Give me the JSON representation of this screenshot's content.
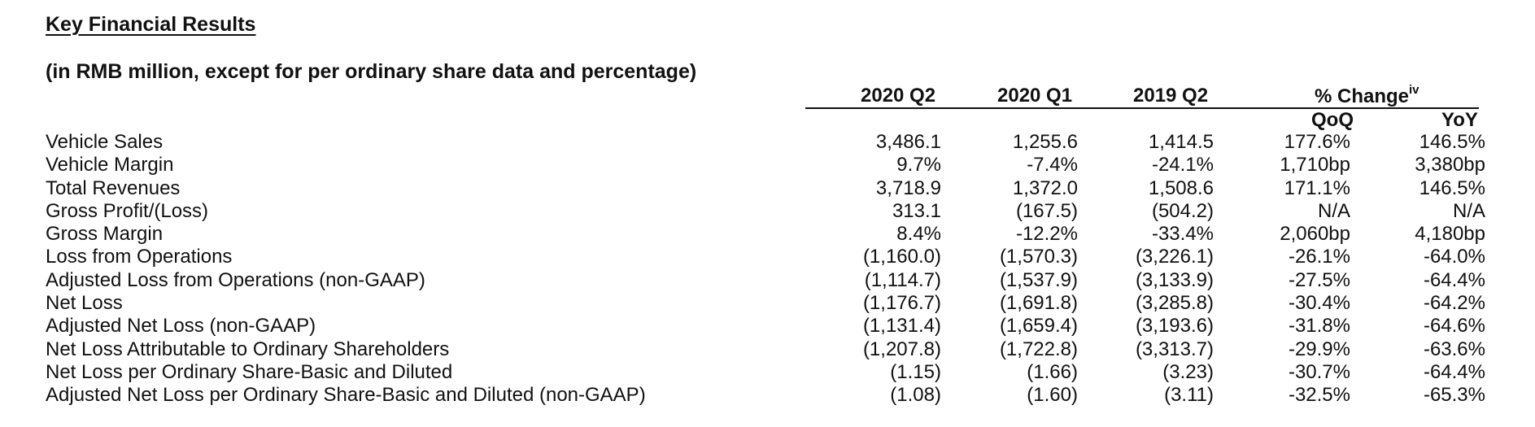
{
  "title": "Key Financial Results",
  "subtitle": "(in RMB million, except for per ordinary share data and percentage)",
  "columns": {
    "q2_2020": "2020 Q2",
    "q1_2020": "2020 Q1",
    "q2_2019": "2019 Q2",
    "pct_change": "% Change",
    "pct_change_note": "iv",
    "qoq": "QoQ",
    "yoy": "YoY"
  },
  "rows": [
    {
      "label": "Vehicle Sales",
      "q2_2020": "3,486.1",
      "q1_2020": "1,255.6",
      "q2_2019": "1,414.5",
      "qoq": "177.6%",
      "yoy": "146.5%"
    },
    {
      "label": "Vehicle Margin",
      "q2_2020": "9.7%",
      "q1_2020": "-7.4%",
      "q2_2019": "-24.1%",
      "qoq": "1,710bp",
      "yoy": "3,380bp"
    },
    {
      "label": "Total Revenues",
      "q2_2020": "3,718.9",
      "q1_2020": "1,372.0",
      "q2_2019": "1,508.6",
      "qoq": "171.1%",
      "yoy": "146.5%"
    },
    {
      "label": "Gross Profit/(Loss)",
      "q2_2020": "313.1",
      "q1_2020": "(167.5)",
      "q2_2019": "(504.2)",
      "qoq": "N/A",
      "yoy": "N/A"
    },
    {
      "label": "Gross Margin",
      "q2_2020": "8.4%",
      "q1_2020": "-12.2%",
      "q2_2019": "-33.4%",
      "qoq": "2,060bp",
      "yoy": "4,180bp"
    },
    {
      "label": "Loss from Operations",
      "q2_2020": "(1,160.0)",
      "q1_2020": "(1,570.3)",
      "q2_2019": "(3,226.1)",
      "qoq": "-26.1%",
      "yoy": "-64.0%"
    },
    {
      "label": "Adjusted Loss from Operations (non-GAAP)",
      "q2_2020": "(1,114.7)",
      "q1_2020": "(1,537.9)",
      "q2_2019": "(3,133.9)",
      "qoq": "-27.5%",
      "yoy": "-64.4%"
    },
    {
      "label": "Net Loss",
      "q2_2020": "(1,176.7)",
      "q1_2020": "(1,691.8)",
      "q2_2019": "(3,285.8)",
      "qoq": "-30.4%",
      "yoy": "-64.2%"
    },
    {
      "label": "Adjusted Net Loss (non-GAAP)",
      "q2_2020": "(1,131.4)",
      "q1_2020": "(1,659.4)",
      "q2_2019": "(3,193.6)",
      "qoq": "-31.8%",
      "yoy": "-64.6%"
    },
    {
      "label": "Net Loss Attributable to Ordinary Shareholders",
      "q2_2020": "(1,207.8)",
      "q1_2020": "(1,722.8)",
      "q2_2019": "(3,313.7)",
      "qoq": "-29.9%",
      "yoy": "-63.6%"
    },
    {
      "label": "Net Loss per Ordinary Share-Basic and Diluted",
      "q2_2020": "(1.15)",
      "q1_2020": "(1.66)",
      "q2_2019": "(3.23)",
      "qoq": "-30.7%",
      "yoy": "-64.4%"
    },
    {
      "label": "Adjusted Net Loss per Ordinary Share-Basic and Diluted (non-GAAP)",
      "q2_2020": "(1.08)",
      "q1_2020": "(1.60)",
      "q2_2019": "(3.11)",
      "qoq": "-32.5%",
      "yoy": "-65.3%"
    }
  ]
}
